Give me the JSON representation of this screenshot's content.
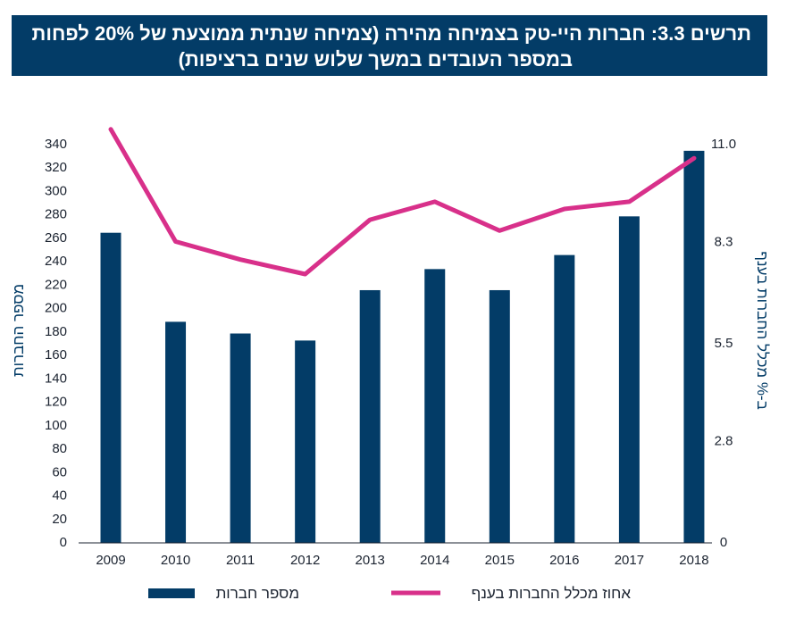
{
  "title": {
    "line1": "תרשים 3.3: חברות היי-טק בצמיחה מהירה (צמיחה שנתית ממוצעת של 20% לפחות",
    "line2": "במספר העובדים במשך שלוש שנים ברציפות)"
  },
  "colors": {
    "bar": "#033c67",
    "line": "#d8308a",
    "title_bg": "#033c67"
  },
  "chart_data": {
    "type": "bar",
    "title": "תרשים 3.3: חברות היי-טק בצמיחה מהירה (צמיחה שנתית ממוצעת של 20% לפחות במספר העובדים במשך שלוש שנים ברציפות)",
    "categories": [
      "2009",
      "2010",
      "2011",
      "2012",
      "2013",
      "2014",
      "2015",
      "2016",
      "2017",
      "2018"
    ],
    "series": [
      {
        "name": "מספר חברות",
        "type": "bar",
        "axis": "left",
        "values": [
          264,
          188,
          178,
          172,
          215,
          233,
          215,
          245,
          278,
          334
        ]
      },
      {
        "name": "אחוז מכלל החברות בענף",
        "type": "line",
        "axis": "right",
        "values": [
          11.4,
          8.3,
          7.8,
          7.4,
          8.9,
          9.4,
          8.6,
          9.2,
          9.4,
          10.6
        ]
      }
    ],
    "ylabel": "מספר החברות",
    "y2label": "ב-% מכלל החברות בענף",
    "ylim": [
      0,
      340
    ],
    "y2lim": [
      0,
      11.0
    ],
    "yticks": [
      "0",
      "20",
      "40",
      "60",
      "80",
      "100",
      "120",
      "140",
      "160",
      "180",
      "200",
      "220",
      "240",
      "260",
      "280",
      "300",
      "320",
      "340"
    ],
    "y2ticks": [
      "0",
      "2.8",
      "5.5",
      "8.3",
      "11.0"
    ],
    "legend": {
      "position": "bottom",
      "items": [
        "מספר חברות",
        "אחוז מכלל החברות בענף"
      ]
    }
  }
}
